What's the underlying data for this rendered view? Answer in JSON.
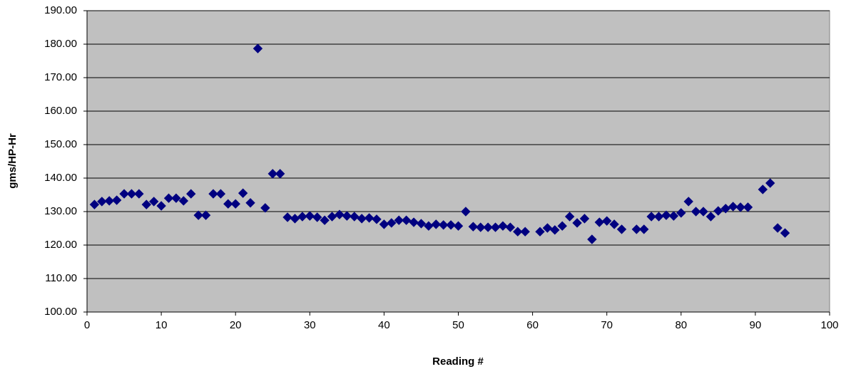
{
  "chart_data": {
    "type": "scatter",
    "x_label": "Reading #",
    "y_label": "gms/HP-Hr",
    "x": [
      1,
      2,
      3,
      4,
      5,
      6,
      7,
      8,
      9,
      10,
      11,
      12,
      13,
      14,
      15,
      16,
      17,
      18,
      19,
      20,
      21,
      22,
      23,
      24,
      25,
      26,
      27,
      28,
      29,
      30,
      31,
      32,
      33,
      34,
      35,
      36,
      37,
      38,
      39,
      40,
      41,
      42,
      43,
      44,
      45,
      46,
      47,
      48,
      49,
      50,
      51,
      52,
      53,
      54,
      55,
      56,
      57,
      58,
      59,
      61,
      62,
      63,
      64,
      65,
      66,
      67,
      68,
      69,
      70,
      71,
      72,
      74,
      75,
      76,
      77,
      78,
      79,
      80,
      81,
      82,
      83,
      84,
      85,
      86,
      87,
      88,
      89,
      91,
      92,
      93,
      94
    ],
    "series": [
      {
        "color": "#000080",
        "values": [
          132.1,
          133.0,
          133.2,
          133.4,
          135.3,
          135.3,
          135.3,
          132.1,
          133.0,
          131.7,
          134.0,
          134.0,
          133.2,
          135.3,
          128.9,
          128.9,
          135.3,
          135.3,
          132.3,
          132.3,
          135.5,
          132.6,
          178.7,
          131.1,
          141.3,
          141.3,
          128.3,
          127.9,
          128.5,
          128.7,
          128.3,
          127.4,
          128.5,
          129.1,
          128.7,
          128.5,
          127.9,
          128.1,
          127.7,
          126.2,
          126.6,
          127.4,
          127.4,
          126.8,
          126.4,
          125.7,
          126.2,
          126.0,
          126.0,
          125.7,
          130.0,
          125.5,
          125.3,
          125.3,
          125.3,
          125.7,
          125.3,
          124.0,
          124.0,
          124.0,
          125.1,
          124.5,
          125.7,
          128.5,
          126.6,
          127.9,
          121.7,
          126.8,
          127.2,
          126.2,
          124.7,
          124.7,
          124.7,
          128.5,
          128.5,
          128.9,
          128.7,
          129.6,
          133.0,
          130.0,
          130.0,
          128.5,
          130.2,
          130.9,
          131.5,
          131.3,
          131.3,
          136.6,
          138.5,
          125.1,
          123.6
        ]
      }
    ],
    "xlim": [
      0,
      100
    ],
    "xticks": [
      0,
      10,
      20,
      30,
      40,
      50,
      60,
      70,
      80,
      90,
      100
    ],
    "ylim": [
      100,
      190
    ],
    "yticks": [
      {
        "value": 100,
        "label": "100.00"
      },
      {
        "value": 110,
        "label": "110.00"
      },
      {
        "value": 120,
        "label": "120.00"
      },
      {
        "value": 130,
        "label": "130.00"
      },
      {
        "value": 140,
        "label": "140.00"
      },
      {
        "value": 150,
        "label": "150.00"
      },
      {
        "value": 160,
        "label": "160.00"
      },
      {
        "value": 170,
        "label": "170.00"
      },
      {
        "value": 180,
        "label": "180.00"
      },
      {
        "value": 190,
        "label": "190.00"
      }
    ],
    "grid": true,
    "plot_background": "#c0c0c0"
  }
}
